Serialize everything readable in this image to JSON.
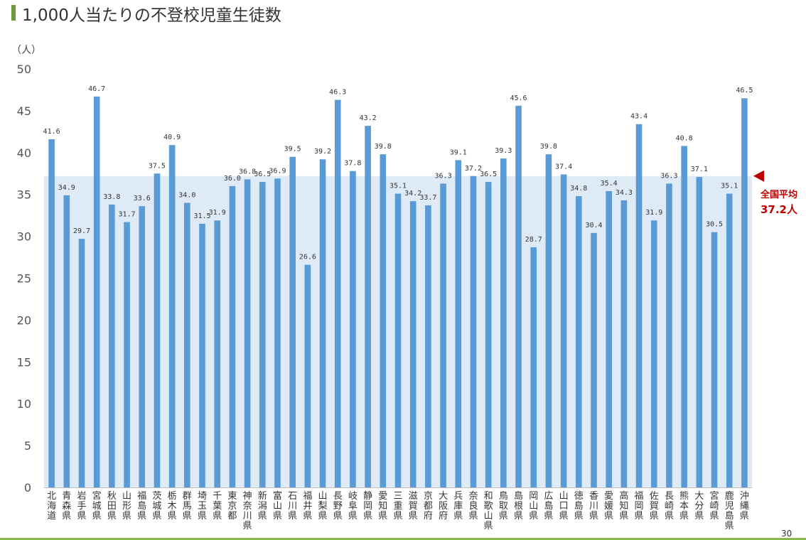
{
  "title": "1,000人当たりの不登校児童生徒数",
  "unit": "（人）",
  "page_number": "30",
  "chart_data": {
    "type": "bar",
    "title": "1,000人当たりの不登校児童生徒数",
    "ylabel": "（人）",
    "ylim": [
      0,
      50
    ],
    "yticks": [
      0,
      5,
      10,
      15,
      20,
      25,
      30,
      35,
      40,
      45,
      50
    ],
    "grid": false,
    "categories": [
      "北海道",
      "青森県",
      "岩手県",
      "宮城県",
      "秋田県",
      "山形県",
      "福島県",
      "茨城県",
      "栃木県",
      "群馬県",
      "埼玉県",
      "千葉県",
      "東京都",
      "神奈川県",
      "新潟県",
      "富山県",
      "石川県",
      "福井県",
      "山梨県",
      "長野県",
      "岐阜県",
      "静岡県",
      "愛知県",
      "三重県",
      "滋賀県",
      "京都府",
      "大阪府",
      "兵庫県",
      "奈良県",
      "和歌山県",
      "鳥取県",
      "島根県",
      "岡山県",
      "広島県",
      "山口県",
      "徳島県",
      "香川県",
      "愛媛県",
      "高知県",
      "福岡県",
      "佐賀県",
      "長崎県",
      "熊本県",
      "大分県",
      "宮崎県",
      "鹿児島県",
      "沖縄県"
    ],
    "values": [
      41.6,
      34.9,
      29.7,
      46.7,
      33.8,
      31.7,
      33.6,
      37.5,
      40.9,
      34.0,
      31.5,
      31.9,
      36.0,
      36.8,
      36.5,
      36.9,
      39.5,
      26.6,
      39.2,
      46.3,
      37.8,
      43.2,
      39.8,
      35.1,
      34.2,
      33.7,
      36.3,
      39.1,
      37.2,
      36.5,
      39.3,
      45.6,
      28.7,
      39.8,
      37.4,
      34.8,
      30.4,
      35.4,
      34.3,
      43.4,
      31.9,
      36.3,
      40.8,
      37.1,
      30.5,
      35.1,
      46.5
    ],
    "data_labels": [
      "41.6",
      "34.9",
      "29.7",
      "46.7",
      "33.8",
      "31.7",
      "33.6",
      "37.5",
      "40.9",
      "34.0",
      "31.5",
      "31.9",
      "36.0",
      "36.8",
      "36.5",
      "36.9",
      "39.5",
      "26.6",
      "39.2",
      "46.3",
      "37.8",
      "43.2",
      "39.8",
      "35.1",
      "34.2",
      "33.7",
      "36.3",
      "39.1",
      "37.2",
      "36.5",
      "39.3",
      "45.6",
      "28.7",
      "39.8",
      "37.4",
      "34.8",
      "30.4",
      "35.4",
      "34.3",
      "43.4",
      "31.9",
      "36.3",
      "40.8",
      "37.1",
      "30.5",
      "35.1",
      "46.5"
    ],
    "series_color": "#5b9bd5",
    "average": {
      "value": 37.2,
      "label_line1": "全国平均",
      "label_line2": "37.2人",
      "band_color": "#deebf7",
      "label_color": "#c00000"
    }
  }
}
